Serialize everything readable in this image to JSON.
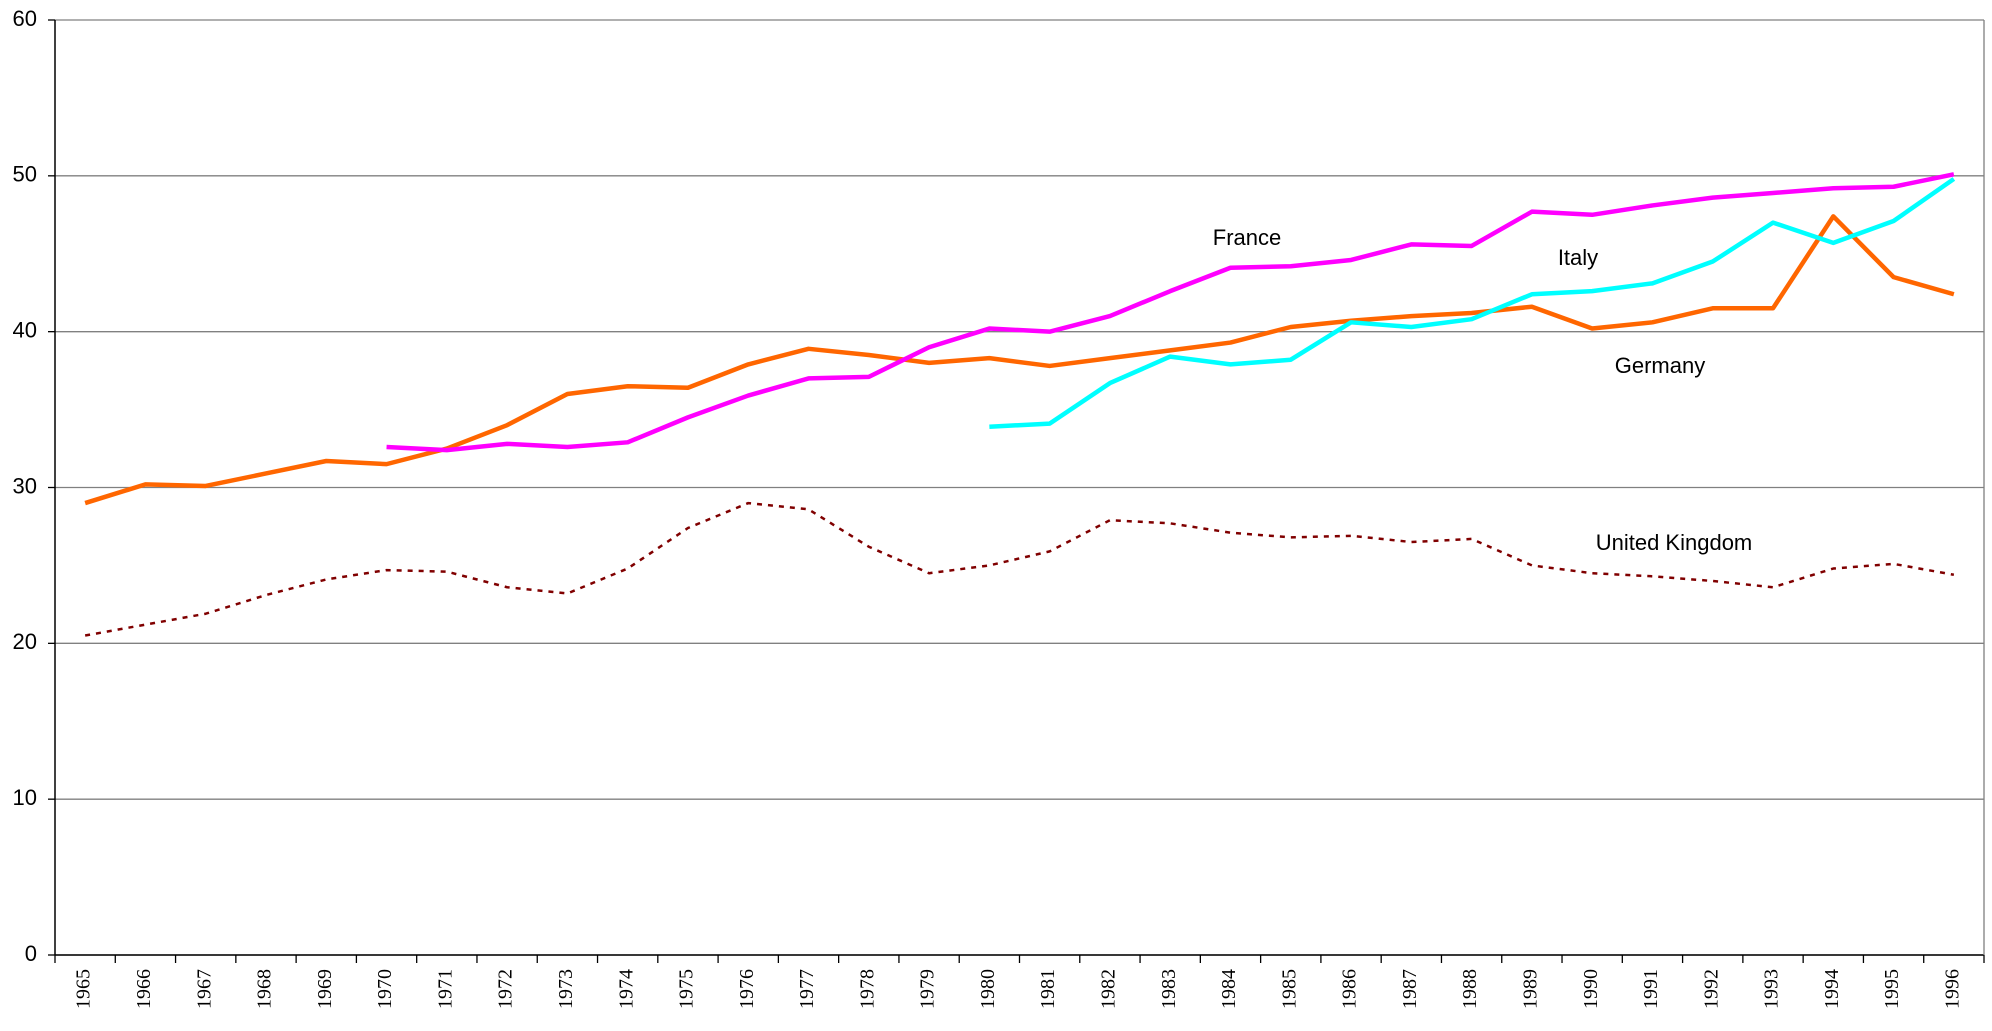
{
  "chart_data": {
    "type": "line",
    "categories": [
      "1965",
      "1966",
      "1967",
      "1968",
      "1969",
      "1970",
      "1971",
      "1972",
      "1973",
      "1974",
      "1975",
      "1976",
      "1977",
      "1978",
      "1979",
      "1980",
      "1981",
      "1982",
      "1983",
      "1984",
      "1985",
      "1986",
      "1987",
      "1988",
      "1989",
      "1990",
      "1991",
      "1992",
      "1993",
      "1994",
      "1995",
      "1996"
    ],
    "series": [
      {
        "name": "Germany",
        "color": "#ff6600",
        "values": [
          29.0,
          30.2,
          30.1,
          30.9,
          31.7,
          31.5,
          32.5,
          34.0,
          36.0,
          36.5,
          36.4,
          37.9,
          38.9,
          38.5,
          38.0,
          38.3,
          37.8,
          38.3,
          38.8,
          39.3,
          40.3,
          40.7,
          41.0,
          41.2,
          41.6,
          40.2,
          40.6,
          41.5,
          41.5,
          47.4,
          43.5,
          42.4
        ]
      },
      {
        "name": "France",
        "color": "#ff00ff",
        "values": [
          null,
          null,
          null,
          null,
          null,
          32.6,
          32.4,
          32.8,
          32.6,
          32.9,
          34.5,
          35.9,
          37.0,
          37.1,
          39.0,
          40.2,
          40.0,
          41.0,
          42.6,
          44.1,
          44.2,
          44.6,
          45.6,
          45.5,
          47.7,
          47.5,
          48.1,
          48.6,
          48.9,
          49.2,
          49.3,
          50.1
        ]
      },
      {
        "name": "Italy",
        "color": "#00ffff",
        "values": [
          null,
          null,
          null,
          null,
          null,
          null,
          null,
          null,
          null,
          null,
          null,
          null,
          null,
          null,
          null,
          33.9,
          34.1,
          36.7,
          38.4,
          37.9,
          38.2,
          40.6,
          40.3,
          40.8,
          42.4,
          42.6,
          43.1,
          44.5,
          47.0,
          45.7,
          47.1,
          49.8
        ]
      },
      {
        "name": "United Kingdom",
        "color": "#800000",
        "line_style": "dotted",
        "values": [
          20.5,
          21.2,
          21.9,
          23.1,
          24.1,
          24.7,
          24.6,
          23.6,
          23.2,
          24.8,
          27.4,
          29.0,
          28.6,
          26.2,
          24.5,
          25.0,
          25.9,
          27.9,
          27.7,
          27.1,
          26.8,
          26.9,
          26.5,
          26.7,
          25.0,
          24.5,
          24.3,
          24.0,
          23.6,
          24.8,
          25.1,
          24.4
        ]
      }
    ],
    "ylim": [
      0,
      60
    ],
    "yticks": [
      0,
      10,
      20,
      30,
      40,
      50,
      60
    ],
    "grid": true
  }
}
